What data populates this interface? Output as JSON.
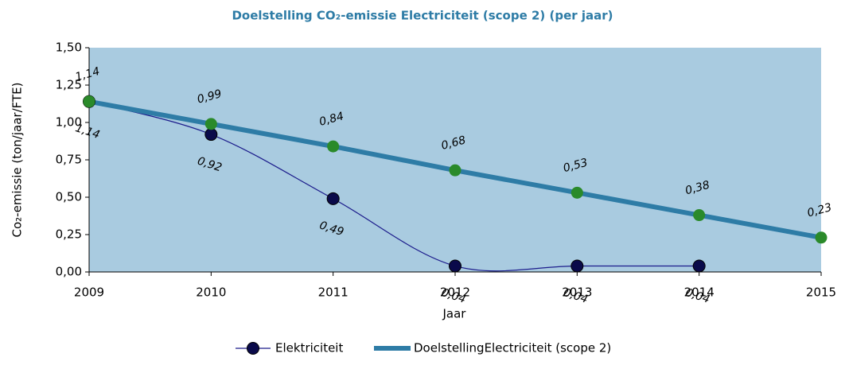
{
  "chart_data": {
    "type": "line",
    "title": "Doelstelling CO₂-emissie Electriciteit (scope 2) (per jaar)",
    "x_label": "Jaar",
    "y_label": "Co₂-emissie (ton/jaar/FTE)",
    "x": [
      2009,
      2010,
      2011,
      2012,
      2013,
      2014,
      2015
    ],
    "xlim": [
      2009,
      2015
    ],
    "xticks": [
      2009,
      2010,
      2011,
      2012,
      2013,
      2014,
      2015
    ],
    "ylim": [
      0,
      1.5
    ],
    "yticks": [
      {
        "value": 0,
        "label": "0,00"
      },
      {
        "value": 0.25,
        "label": "0,25"
      },
      {
        "value": 0.5,
        "label": "0,50"
      },
      {
        "value": 0.75,
        "label": "0,75"
      },
      {
        "value": 1,
        "label": "1,00"
      },
      {
        "value": 1.25,
        "label": "1,25"
      },
      {
        "value": 1.5,
        "label": "1,50"
      }
    ],
    "series": [
      {
        "name": "Elektriciteit",
        "color": "#1c1c8c",
        "marker_color": "#0a0a4a",
        "values": [
          1.14,
          0.92,
          0.49,
          0.04,
          0.04,
          0.04,
          null
        ],
        "value_labels": [
          "1,14",
          "0,92",
          "0,49",
          "0,04",
          "0,04",
          "0,04",
          null
        ]
      },
      {
        "name": "DoelstellingElectriciteit (scope 2)",
        "color": "#2e7ca6",
        "marker_color": "#2a8a2a",
        "values": [
          1.14,
          0.99,
          0.84,
          0.68,
          0.53,
          0.38,
          0.23
        ],
        "value_labels": [
          "1,14",
          "0,99",
          "0,84",
          "0,68",
          "0,53",
          "0,38",
          "0,23"
        ]
      }
    ]
  }
}
